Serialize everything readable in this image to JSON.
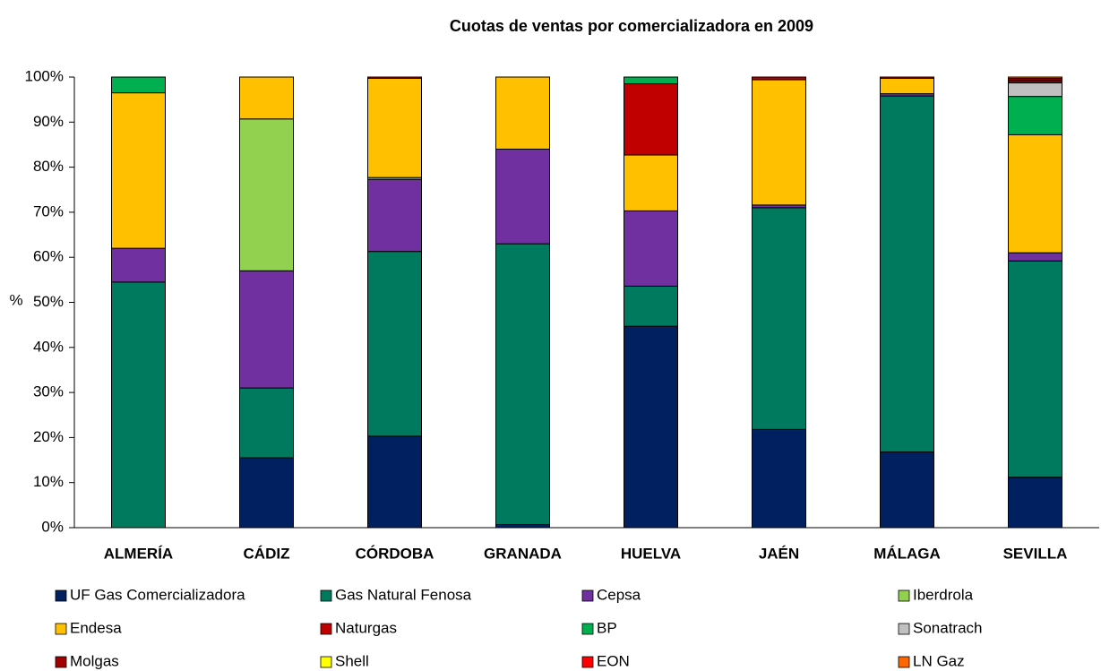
{
  "chart_data": {
    "type": "stacked_bar",
    "title": "Cuotas de ventas por comercializadora en 2009",
    "y_label": "%",
    "categories": [
      "ALMERÍA",
      "CÁDIZ",
      "CÓRDOBA",
      "GRANADA",
      "HUELVA",
      "JAÉN",
      "MÁLAGA",
      "SEVILLA"
    ],
    "series": [
      {
        "name": "UF Gas Comercializadora",
        "color": "#002060",
        "values": [
          0,
          15.5,
          20.3,
          0.7,
          44.7,
          21.8,
          16.8,
          11.2
        ]
      },
      {
        "name": "Gas Natural Fenosa",
        "color": "#007a5e",
        "values": [
          54.5,
          15.5,
          41,
          62.3,
          8.9,
          49.2,
          79,
          48
        ]
      },
      {
        "name": "Cepsa",
        "color": "#7030a0",
        "values": [
          7.5,
          26,
          16,
          21,
          16.7,
          0.6,
          0.5,
          1.8
        ]
      },
      {
        "name": "Iberdrola",
        "color": "#92d050",
        "values": [
          0,
          33.7,
          0.4,
          0,
          0,
          0,
          0,
          0
        ]
      },
      {
        "name": "Endesa",
        "color": "#ffc000",
        "values": [
          34.5,
          9.3,
          22,
          16,
          12.4,
          27.8,
          3.4,
          26.2
        ]
      },
      {
        "name": "Naturgas",
        "color": "#c00000",
        "values": [
          0,
          0,
          0.3,
          0,
          15.8,
          0.6,
          0.3,
          0
        ]
      },
      {
        "name": "BP",
        "color": "#00b050",
        "values": [
          3.5,
          0,
          0,
          0,
          1.5,
          0,
          0,
          8.5
        ]
      },
      {
        "name": "Sonatrach",
        "color": "#c0c0c0",
        "values": [
          0,
          0,
          0,
          0,
          0,
          0,
          0,
          3
        ]
      },
      {
        "name": "Molgas",
        "color": "#a00000",
        "values": [
          0,
          0,
          0,
          0,
          0,
          0,
          0,
          0.5
        ]
      },
      {
        "name": "Shell",
        "color": "#ffff00",
        "values": [
          0,
          0,
          0,
          0,
          0,
          0,
          0,
          0.2
        ]
      },
      {
        "name": "EON",
        "color": "#ff0000",
        "values": [
          0,
          0,
          0,
          0,
          0,
          0,
          0,
          0.3
        ]
      },
      {
        "name": "LN Gaz",
        "color": "#ff6600",
        "values": [
          0,
          0,
          0,
          0,
          0,
          0,
          0,
          0.3
        ]
      }
    ],
    "ylim": [
      0,
      100
    ],
    "yticks": [
      {
        "value": 0,
        "label": "0%"
      },
      {
        "value": 10,
        "label": "10%"
      },
      {
        "value": 20,
        "label": "20%"
      },
      {
        "value": 30,
        "label": "30%"
      },
      {
        "value": 40,
        "label": "40%"
      },
      {
        "value": 50,
        "label": "50%"
      },
      {
        "value": 60,
        "label": "60%"
      },
      {
        "value": 70,
        "label": "70%"
      },
      {
        "value": 80,
        "label": "80%"
      },
      {
        "value": 90,
        "label": "90%"
      },
      {
        "value": 100,
        "label": "100%"
      }
    ],
    "legend": "bottom"
  }
}
